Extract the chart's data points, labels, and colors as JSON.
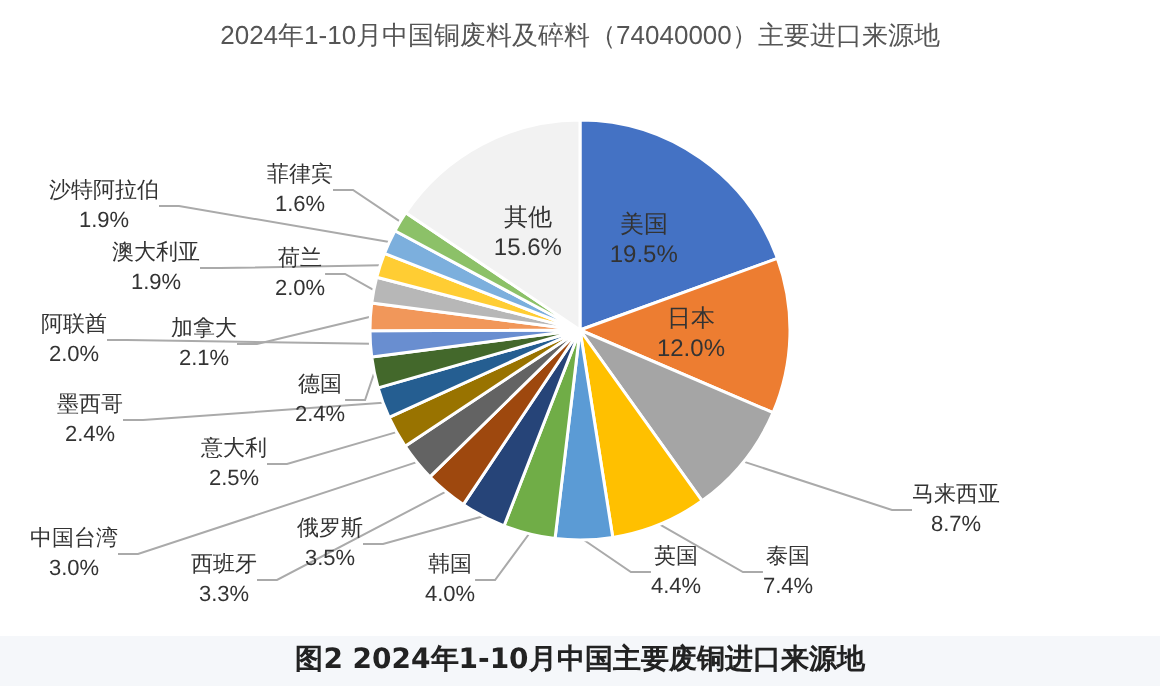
{
  "chart_data": {
    "type": "pie",
    "title": "2024年1-10月中国铜废料及碎料（74040000）主要进口来源地",
    "categories": [
      "美国",
      "日本",
      "马来西亚",
      "泰国",
      "英国",
      "韩国",
      "俄罗斯",
      "西班牙",
      "中国台湾",
      "意大利",
      "墨西哥",
      "德国",
      "阿联酋",
      "加拿大",
      "荷兰",
      "澳大利亚",
      "沙特阿拉伯",
      "菲律宾",
      "其他"
    ],
    "values": [
      19.5,
      12.0,
      8.7,
      7.4,
      4.4,
      4.0,
      3.5,
      3.3,
      3.0,
      2.5,
      2.4,
      2.4,
      2.0,
      2.1,
      2.0,
      1.9,
      1.9,
      1.6,
      15.6
    ],
    "colors": [
      "#4472c4",
      "#ed7d31",
      "#a5a5a5",
      "#ffc000",
      "#5b9bd5",
      "#70ad47",
      "#264478",
      "#9e480e",
      "#636363",
      "#997300",
      "#255e91",
      "#43682b",
      "#698ed0",
      "#f1975a",
      "#b7b7b7",
      "#ffcd33",
      "#7cafdd",
      "#8cc168",
      "#f2f2f2"
    ],
    "value_labels": [
      "19.5%",
      "12.0%",
      "8.7%",
      "7.4%",
      "4.4%",
      "4.0%",
      "3.5%",
      "3.3%",
      "3.0%",
      "2.5%",
      "2.4%",
      "2.4%",
      "2.0%",
      "2.1%",
      "2.0%",
      "1.9%",
      "1.9%",
      "1.6%",
      "15.6%"
    ],
    "legend": false,
    "annotations": [
      "图2 2024年1-10月中国主要废铜进口来源地"
    ]
  }
}
